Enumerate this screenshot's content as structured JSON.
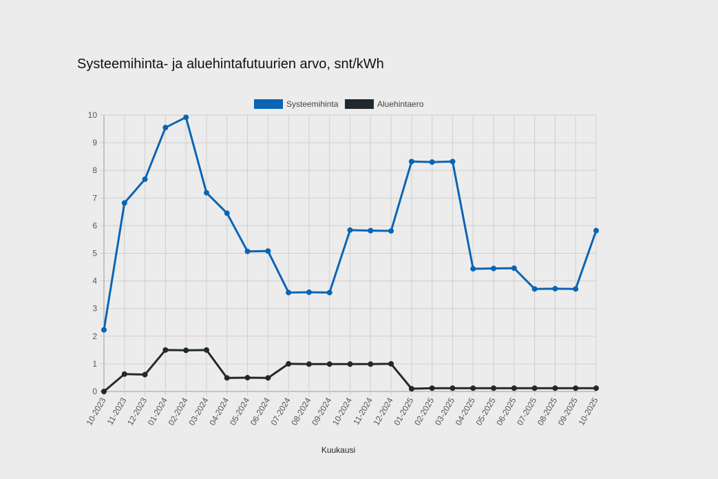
{
  "chart_data": {
    "type": "line",
    "title": "Systeemihinta- ja aluehintafutuurien arvo, snt/kWh",
    "xlabel": "Kuukausi",
    "ylabel": "",
    "ylim": [
      0,
      10
    ],
    "yticks": [
      "0",
      "1",
      "2",
      "3",
      "4",
      "5",
      "6",
      "7",
      "8",
      "9",
      "10"
    ],
    "grid": true,
    "legend_position": "top-center",
    "categories": [
      "10-2023",
      "11-2023",
      "12-2023",
      "01-2024",
      "02-2024",
      "03-2024",
      "04-2024",
      "05-2024",
      "06-2024",
      "07-2024",
      "08-2024",
      "09-2024",
      "10-2024",
      "11-2024",
      "12-2024",
      "01-2025",
      "02-2025",
      "03-2025",
      "04-2025",
      "05-2025",
      "06-2025",
      "07-2025",
      "08-2025",
      "09-2025",
      "10-2025"
    ],
    "series": [
      {
        "name": "Systeemihinta",
        "color": "#0a64b4",
        "values": [
          2.23,
          6.82,
          7.68,
          9.55,
          9.92,
          7.19,
          6.45,
          5.07,
          5.08,
          3.58,
          3.59,
          3.58,
          5.84,
          5.82,
          5.81,
          8.32,
          8.3,
          8.32,
          4.44,
          4.45,
          4.46,
          3.71,
          3.72,
          3.71,
          5.82
        ]
      },
      {
        "name": "Aluehintaero",
        "color": "#21292e",
        "values": [
          0.0,
          0.63,
          0.61,
          1.5,
          1.49,
          1.5,
          0.49,
          0.5,
          0.49,
          1.0,
          0.99,
          0.99,
          0.99,
          0.99,
          1.0,
          0.1,
          0.12,
          0.12,
          0.12,
          0.12,
          0.12,
          0.12,
          0.12,
          0.12,
          0.12
        ]
      }
    ]
  }
}
